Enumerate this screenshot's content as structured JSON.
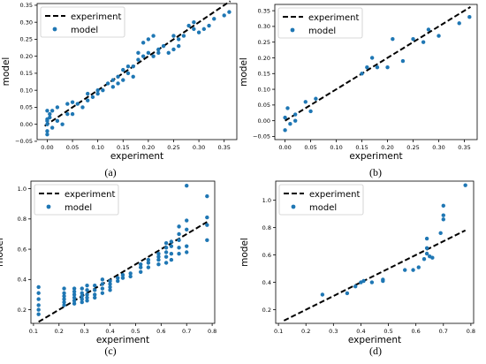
{
  "chart_data": [
    {
      "type": "scatter",
      "panel_label": "(a)",
      "xlabel": "experiment",
      "ylabel": "model",
      "xlim": [
        -0.02,
        0.375
      ],
      "ylim": [
        -0.045,
        0.355
      ],
      "xticks": [
        "0.00",
        "0.05",
        "0.10",
        "0.15",
        "0.20",
        "0.25",
        "0.30",
        "0.35"
      ],
      "xtick_values": [
        0.0,
        0.05,
        0.1,
        0.15,
        0.2,
        0.25,
        0.3,
        0.35
      ],
      "yticks": [
        "−0.05",
        "0.00",
        "0.05",
        "0.10",
        "0.15",
        "0.20",
        "0.25",
        "0.30",
        "0.35"
      ],
      "ytick_values": [
        -0.05,
        0.0,
        0.05,
        0.1,
        0.15,
        0.2,
        0.25,
        0.3,
        0.35
      ],
      "legend_position": "top-left",
      "legend": [
        "experiment",
        "model"
      ],
      "line": {
        "name": "experiment",
        "x": [
          -0.005,
          0.362
        ],
        "y": [
          -0.005,
          0.362
        ]
      },
      "series": [
        {
          "name": "model",
          "points": [
            [
              0.0,
              -0.03
            ],
            [
              0.0,
              -0.02
            ],
            [
              0.0,
              0.0
            ],
            [
              0.0,
              0.01
            ],
            [
              0.0,
              0.015
            ],
            [
              0.0,
              0.04
            ],
            [
              0.005,
              0.02
            ],
            [
              0.005,
              0.03
            ],
            [
              0.01,
              0.04
            ],
            [
              0.01,
              -0.01
            ],
            [
              0.02,
              0.01
            ],
            [
              0.02,
              0.05
            ],
            [
              0.03,
              0.0
            ],
            [
              0.04,
              0.03
            ],
            [
              0.04,
              0.06
            ],
            [
              0.05,
              0.03
            ],
            [
              0.05,
              0.065
            ],
            [
              0.06,
              0.06
            ],
            [
              0.07,
              0.05
            ],
            [
              0.08,
              0.07
            ],
            [
              0.08,
              0.09
            ],
            [
              0.09,
              0.08
            ],
            [
              0.1,
              0.09
            ],
            [
              0.1,
              0.1
            ],
            [
              0.11,
              0.1
            ],
            [
              0.12,
              0.12
            ],
            [
              0.13,
              0.11
            ],
            [
              0.13,
              0.13
            ],
            [
              0.14,
              0.12
            ],
            [
              0.14,
              0.14
            ],
            [
              0.15,
              0.13
            ],
            [
              0.15,
              0.16
            ],
            [
              0.16,
              0.15
            ],
            [
              0.16,
              0.17
            ],
            [
              0.17,
              0.14
            ],
            [
              0.17,
              0.17
            ],
            [
              0.18,
              0.19
            ],
            [
              0.18,
              0.21
            ],
            [
              0.19,
              0.2
            ],
            [
              0.19,
              0.24
            ],
            [
              0.2,
              0.21
            ],
            [
              0.2,
              0.25
            ],
            [
              0.21,
              0.2
            ],
            [
              0.21,
              0.26
            ],
            [
              0.22,
              0.22
            ],
            [
              0.22,
              0.21
            ],
            [
              0.23,
              0.23
            ],
            [
              0.24,
              0.21
            ],
            [
              0.25,
              0.22
            ],
            [
              0.25,
              0.26
            ],
            [
              0.26,
              0.23
            ],
            [
              0.26,
              0.25
            ],
            [
              0.27,
              0.26
            ],
            [
              0.28,
              0.29
            ],
            [
              0.29,
              0.28
            ],
            [
              0.29,
              0.3
            ],
            [
              0.3,
              0.27
            ],
            [
              0.31,
              0.28
            ],
            [
              0.32,
              0.29
            ],
            [
              0.33,
              0.31
            ],
            [
              0.35,
              0.32
            ],
            [
              0.36,
              0.33
            ]
          ]
        }
      ]
    },
    {
      "type": "scatter",
      "panel_label": "(b)",
      "xlabel": "experiment",
      "ylabel": "model",
      "xlim": [
        -0.02,
        0.375
      ],
      "ylim": [
        -0.06,
        0.37
      ],
      "xticks": [
        "0.00",
        "0.05",
        "0.10",
        "0.15",
        "0.20",
        "0.25",
        "0.30",
        "0.35"
      ],
      "xtick_values": [
        0.0,
        0.05,
        0.1,
        0.15,
        0.2,
        0.25,
        0.3,
        0.35
      ],
      "yticks": [
        "−0.05",
        "0.00",
        "0.05",
        "0.10",
        "0.15",
        "0.20",
        "0.25",
        "0.30",
        "0.35"
      ],
      "ytick_values": [
        -0.05,
        0.0,
        0.05,
        0.1,
        0.15,
        0.2,
        0.25,
        0.3,
        0.35
      ],
      "legend_position": "top-left",
      "legend": [
        "experiment",
        "model"
      ],
      "line": {
        "name": "experiment",
        "x": [
          0.0,
          0.362
        ],
        "y": [
          0.0,
          0.362
        ]
      },
      "series": [
        {
          "name": "model",
          "points": [
            [
              0.0,
              -0.03
            ],
            [
              0.0,
              0.01
            ],
            [
              0.005,
              0.04
            ],
            [
              0.01,
              -0.01
            ],
            [
              0.02,
              0.02
            ],
            [
              0.02,
              0.0
            ],
            [
              0.04,
              0.06
            ],
            [
              0.05,
              0.03
            ],
            [
              0.06,
              0.07
            ],
            [
              0.15,
              0.15
            ],
            [
              0.16,
              0.17
            ],
            [
              0.17,
              0.2
            ],
            [
              0.18,
              0.17
            ],
            [
              0.2,
              0.17
            ],
            [
              0.21,
              0.26
            ],
            [
              0.23,
              0.19
            ],
            [
              0.25,
              0.26
            ],
            [
              0.27,
              0.25
            ],
            [
              0.28,
              0.29
            ],
            [
              0.3,
              0.27
            ],
            [
              0.34,
              0.31
            ],
            [
              0.36,
              0.33
            ]
          ]
        }
      ]
    },
    {
      "type": "scatter",
      "panel_label": "(c)",
      "xlabel": "experiment",
      "ylabel": "model",
      "xlim": [
        0.09,
        0.81
      ],
      "ylim": [
        0.11,
        1.05
      ],
      "xticks": [
        "0.1",
        "0.2",
        "0.3",
        "0.4",
        "0.5",
        "0.6",
        "0.7",
        "0.8"
      ],
      "xtick_values": [
        0.1,
        0.2,
        0.3,
        0.4,
        0.5,
        0.6,
        0.7,
        0.8
      ],
      "yticks": [
        "0.2",
        "0.4",
        "0.6",
        "0.8",
        "1.0"
      ],
      "ytick_values": [
        0.2,
        0.4,
        0.6,
        0.8,
        1.0
      ],
      "legend_position": "top-left",
      "legend": [
        "experiment",
        "model"
      ],
      "line": {
        "name": "experiment",
        "x": [
          0.12,
          0.78
        ],
        "y": [
          0.12,
          0.78
        ]
      },
      "series": [
        {
          "name": "model",
          "points": [
            [
              0.12,
              0.17
            ],
            [
              0.12,
              0.2
            ],
            [
              0.12,
              0.23
            ],
            [
              0.12,
              0.27
            ],
            [
              0.12,
              0.31
            ],
            [
              0.12,
              0.35
            ],
            [
              0.22,
              0.23
            ],
            [
              0.22,
              0.25
            ],
            [
              0.22,
              0.27
            ],
            [
              0.22,
              0.29
            ],
            [
              0.22,
              0.31
            ],
            [
              0.22,
              0.34
            ],
            [
              0.26,
              0.24
            ],
            [
              0.26,
              0.26
            ],
            [
              0.26,
              0.28
            ],
            [
              0.26,
              0.3
            ],
            [
              0.26,
              0.32
            ],
            [
              0.26,
              0.34
            ],
            [
              0.29,
              0.25
            ],
            [
              0.29,
              0.27
            ],
            [
              0.29,
              0.29
            ],
            [
              0.29,
              0.31
            ],
            [
              0.29,
              0.34
            ],
            [
              0.31,
              0.26
            ],
            [
              0.31,
              0.28
            ],
            [
              0.31,
              0.3
            ],
            [
              0.31,
              0.33
            ],
            [
              0.31,
              0.36
            ],
            [
              0.34,
              0.28
            ],
            [
              0.34,
              0.3
            ],
            [
              0.34,
              0.33
            ],
            [
              0.34,
              0.36
            ],
            [
              0.37,
              0.31
            ],
            [
              0.37,
              0.34
            ],
            [
              0.37,
              0.37
            ],
            [
              0.37,
              0.4
            ],
            [
              0.4,
              0.33
            ],
            [
              0.4,
              0.35
            ],
            [
              0.4,
              0.37
            ],
            [
              0.4,
              0.39
            ],
            [
              0.43,
              0.39
            ],
            [
              0.43,
              0.41
            ],
            [
              0.45,
              0.41
            ],
            [
              0.45,
              0.43
            ],
            [
              0.48,
              0.42
            ],
            [
              0.48,
              0.44
            ],
            [
              0.52,
              0.45
            ],
            [
              0.52,
              0.48
            ],
            [
              0.52,
              0.5
            ],
            [
              0.55,
              0.48
            ],
            [
              0.55,
              0.51
            ],
            [
              0.55,
              0.53
            ],
            [
              0.59,
              0.5
            ],
            [
              0.59,
              0.53
            ],
            [
              0.59,
              0.55
            ],
            [
              0.59,
              0.57
            ],
            [
              0.62,
              0.51
            ],
            [
              0.62,
              0.55
            ],
            [
              0.62,
              0.58
            ],
            [
              0.62,
              0.61
            ],
            [
              0.62,
              0.64
            ],
            [
              0.64,
              0.53
            ],
            [
              0.64,
              0.57
            ],
            [
              0.64,
              0.62
            ],
            [
              0.64,
              0.65
            ],
            [
              0.67,
              0.57
            ],
            [
              0.67,
              0.61
            ],
            [
              0.67,
              0.66
            ],
            [
              0.67,
              0.7
            ],
            [
              0.67,
              0.75
            ],
            [
              0.7,
              0.58
            ],
            [
              0.7,
              0.62
            ],
            [
              0.7,
              0.73
            ],
            [
              0.7,
              0.79
            ],
            [
              0.7,
              1.02
            ],
            [
              0.78,
              0.66
            ],
            [
              0.78,
              0.76
            ],
            [
              0.78,
              0.81
            ],
            [
              0.78,
              0.95
            ]
          ]
        }
      ]
    },
    {
      "type": "scatter",
      "panel_label": "(d)",
      "xlabel": "experiment",
      "ylabel": "model",
      "xlim": [
        0.09,
        0.81
      ],
      "ylim": [
        0.1,
        1.14
      ],
      "xticks": [
        "0.1",
        "0.2",
        "0.3",
        "0.4",
        "0.5",
        "0.6",
        "0.7",
        "0.8"
      ],
      "xtick_values": [
        0.1,
        0.2,
        0.3,
        0.4,
        0.5,
        0.6,
        0.7,
        0.8
      ],
      "yticks": [
        "0.2",
        "0.4",
        "0.6",
        "0.8",
        "1.0"
      ],
      "ytick_values": [
        0.2,
        0.4,
        0.6,
        0.8,
        1.0
      ],
      "legend_position": "top-left",
      "legend": [
        "experiment",
        "model"
      ],
      "line": {
        "name": "experiment",
        "x": [
          0.12,
          0.78
        ],
        "y": [
          0.12,
          0.78
        ]
      },
      "series": [
        {
          "name": "model",
          "points": [
            [
              0.26,
              0.31
            ],
            [
              0.35,
              0.32
            ],
            [
              0.38,
              0.37
            ],
            [
              0.4,
              0.4
            ],
            [
              0.41,
              0.41
            ],
            [
              0.44,
              0.4
            ],
            [
              0.48,
              0.41
            ],
            [
              0.48,
              0.42
            ],
            [
              0.56,
              0.49
            ],
            [
              0.59,
              0.49
            ],
            [
              0.61,
              0.51
            ],
            [
              0.63,
              0.57
            ],
            [
              0.64,
              0.61
            ],
            [
              0.64,
              0.65
            ],
            [
              0.64,
              0.72
            ],
            [
              0.65,
              0.59
            ],
            [
              0.66,
              0.58
            ],
            [
              0.69,
              0.76
            ],
            [
              0.7,
              0.86
            ],
            [
              0.7,
              0.89
            ],
            [
              0.7,
              0.96
            ],
            [
              0.78,
              1.11
            ]
          ]
        }
      ]
    }
  ],
  "colors": {
    "line": "#000000",
    "points": "#1f77b4",
    "legend_border": "#cccccc"
  }
}
